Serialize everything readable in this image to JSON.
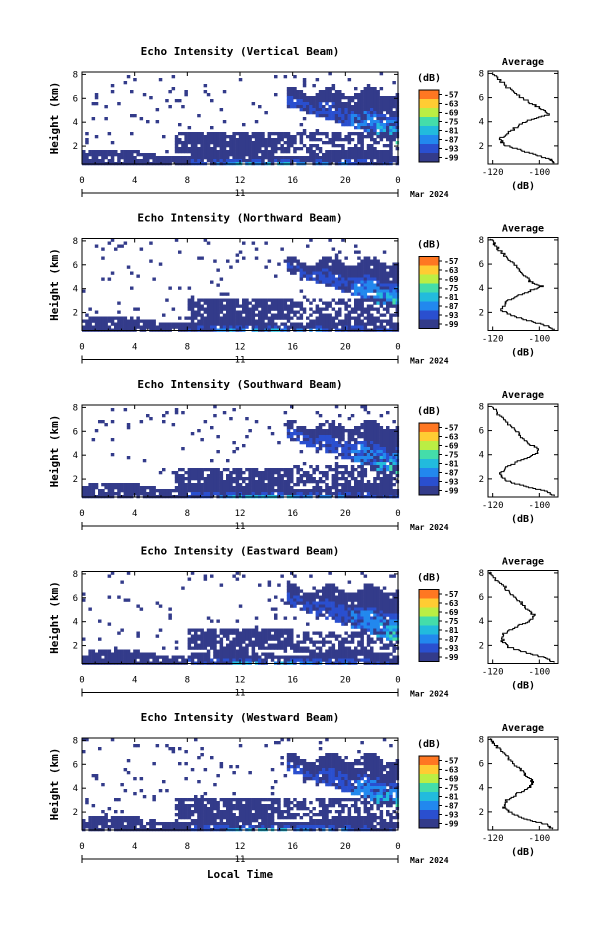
{
  "figure": {
    "xlabel_bottom": "Local Time",
    "date_label": "Mar 2024",
    "day_label": "11"
  },
  "colorbar": {
    "unit_label": "(dB)",
    "levels": [
      "-57",
      "-63",
      "-69",
      "-75",
      "-81",
      "-87",
      "-93",
      "-99"
    ],
    "colors": [
      "#ff7722",
      "#ffcc33",
      "#bbee44",
      "#44ddaa",
      "#22bbdd",
      "#2288ee",
      "#2a4fcf",
      "#333b8a"
    ]
  },
  "chart_data": [
    {
      "type": "heatmap",
      "title": "Echo Intensity (Vertical Beam)",
      "ylabel": "Height (km)",
      "x_ticks": [
        "0",
        "4",
        "8",
        "12",
        "16",
        "20",
        "0"
      ],
      "y_ticks": [
        "2",
        "4",
        "6",
        "8"
      ],
      "xlim": [
        0,
        24
      ],
      "ylim": [
        0.5,
        8.2
      ],
      "features": {
        "upper_layer_start_hour": 15.5,
        "upper_layer_top_km": 7.0,
        "mid_layer_km": 2.5,
        "surface_layer_km": 1.0
      },
      "profile": {
        "title": "Average",
        "xlabel": "(dB)",
        "x_ticks": [
          "-120",
          "-100"
        ],
        "xlim": [
          -122,
          -92
        ],
        "y_ticks": [
          "2",
          "4",
          "6",
          "8"
        ],
        "points": [
          [
            -93,
            0.6
          ],
          [
            -95,
            0.9
          ],
          [
            -102,
            1.3
          ],
          [
            -110,
            1.8
          ],
          [
            -115,
            2.1
          ],
          [
            -117,
            2.6
          ],
          [
            -113,
            3.2
          ],
          [
            -108,
            3.8
          ],
          [
            -104,
            4.2
          ],
          [
            -96,
            4.6
          ],
          [
            -98,
            5.0
          ],
          [
            -103,
            5.5
          ],
          [
            -108,
            6.1
          ],
          [
            -113,
            6.8
          ],
          [
            -117,
            7.5
          ],
          [
            -120,
            8.1
          ]
        ]
      }
    },
    {
      "type": "heatmap",
      "title": "Echo Intensity (Northward Beam)",
      "ylabel": "Height (km)",
      "x_ticks": [
        "0",
        "4",
        "8",
        "12",
        "16",
        "20",
        "0"
      ],
      "y_ticks": [
        "2",
        "4",
        "6",
        "8"
      ],
      "xlim": [
        0,
        24
      ],
      "ylim": [
        0.5,
        8.2
      ],
      "features": {
        "upper_layer_start_hour": 15.5,
        "upper_layer_top_km": 6.8,
        "mid_layer_km": 2.5,
        "surface_layer_km": 1.0
      },
      "profile": {
        "title": "Average",
        "xlabel": "(dB)",
        "x_ticks": [
          "-120",
          "-100"
        ],
        "xlim": [
          -122,
          -92
        ],
        "y_ticks": [
          "2",
          "4",
          "6",
          "8"
        ],
        "points": [
          [
            -94,
            0.6
          ],
          [
            -96,
            0.9
          ],
          [
            -104,
            1.3
          ],
          [
            -112,
            1.8
          ],
          [
            -116,
            2.2
          ],
          [
            -115,
            2.8
          ],
          [
            -111,
            3.3
          ],
          [
            -104,
            3.8
          ],
          [
            -99,
            4.2
          ],
          [
            -104,
            4.6
          ],
          [
            -106,
            5.1
          ],
          [
            -109,
            5.7
          ],
          [
            -112,
            6.3
          ],
          [
            -116,
            7.0
          ],
          [
            -119,
            7.6
          ],
          [
            -121,
            8.1
          ]
        ]
      }
    },
    {
      "type": "heatmap",
      "title": "Echo Intensity (Southward Beam)",
      "ylabel": "Height (km)",
      "x_ticks": [
        "0",
        "4",
        "8",
        "12",
        "16",
        "20",
        "0"
      ],
      "y_ticks": [
        "2",
        "4",
        "6",
        "8"
      ],
      "xlim": [
        0,
        24
      ],
      "ylim": [
        0.5,
        8.2
      ],
      "features": {
        "upper_layer_start_hour": 15.5,
        "upper_layer_top_km": 7.0,
        "mid_layer_km": 2.2,
        "surface_layer_km": 1.0
      },
      "profile": {
        "title": "Average",
        "xlabel": "(dB)",
        "x_ticks": [
          "-120",
          "-100"
        ],
        "xlim": [
          -122,
          -92
        ],
        "y_ticks": [
          "2",
          "4",
          "6",
          "8"
        ],
        "points": [
          [
            -94,
            0.6
          ],
          [
            -96,
            1.0
          ],
          [
            -106,
            1.4
          ],
          [
            -114,
            1.9
          ],
          [
            -117,
            2.4
          ],
          [
            -114,
            3.0
          ],
          [
            -108,
            3.6
          ],
          [
            -101,
            4.1
          ],
          [
            -100,
            4.5
          ],
          [
            -104,
            4.9
          ],
          [
            -107,
            5.4
          ],
          [
            -110,
            6.0
          ],
          [
            -114,
            6.7
          ],
          [
            -117,
            7.3
          ],
          [
            -120,
            8.0
          ]
        ]
      }
    },
    {
      "type": "heatmap",
      "title": "Echo Intensity (Eastward Beam)",
      "ylabel": "Height (km)",
      "x_ticks": [
        "0",
        "4",
        "8",
        "12",
        "16",
        "20",
        "0"
      ],
      "y_ticks": [
        "2",
        "4",
        "6",
        "8"
      ],
      "xlim": [
        0,
        24
      ],
      "ylim": [
        0.5,
        8.2
      ],
      "features": {
        "upper_layer_start_hour": 15.5,
        "upper_layer_top_km": 7.2,
        "mid_layer_km": 2.6,
        "surface_layer_km": 1.0
      },
      "profile": {
        "title": "Average",
        "xlabel": "(dB)",
        "x_ticks": [
          "-120",
          "-100"
        ],
        "xlim": [
          -122,
          -92
        ],
        "y_ticks": [
          "2",
          "4",
          "6",
          "8"
        ],
        "points": [
          [
            -94,
            0.6
          ],
          [
            -97,
            1.0
          ],
          [
            -105,
            1.4
          ],
          [
            -113,
            1.9
          ],
          [
            -116,
            2.4
          ],
          [
            -115,
            3.0
          ],
          [
            -110,
            3.6
          ],
          [
            -104,
            4.0
          ],
          [
            -102,
            4.5
          ],
          [
            -105,
            5.0
          ],
          [
            -108,
            5.6
          ],
          [
            -112,
            6.2
          ],
          [
            -115,
            6.9
          ],
          [
            -119,
            7.6
          ],
          [
            -121,
            8.1
          ]
        ]
      }
    },
    {
      "type": "heatmap",
      "title": "Echo Intensity (Westward Beam)",
      "ylabel": "Height (km)",
      "x_ticks": [
        "0",
        "4",
        "8",
        "12",
        "16",
        "20",
        "0"
      ],
      "y_ticks": [
        "2",
        "4",
        "6",
        "8"
      ],
      "xlim": [
        0,
        24
      ],
      "ylim": [
        0.5,
        8.2
      ],
      "features": {
        "upper_layer_start_hour": 15.5,
        "upper_layer_top_km": 7.0,
        "mid_layer_km": 2.5,
        "surface_layer_km": 1.0
      },
      "profile": {
        "title": "Average",
        "xlabel": "(dB)",
        "x_ticks": [
          "-120",
          "-100"
        ],
        "xlim": [
          -122,
          -92
        ],
        "y_ticks": [
          "2",
          "4",
          "6",
          "8"
        ],
        "points": [
          [
            -94,
            0.6
          ],
          [
            -97,
            1.0
          ],
          [
            -105,
            1.4
          ],
          [
            -112,
            1.9
          ],
          [
            -115,
            2.4
          ],
          [
            -114,
            3.0
          ],
          [
            -109,
            3.6
          ],
          [
            -104,
            4.1
          ],
          [
            -103,
            4.6
          ],
          [
            -106,
            5.1
          ],
          [
            -109,
            5.7
          ],
          [
            -112,
            6.3
          ],
          [
            -116,
            7.0
          ],
          [
            -119,
            7.6
          ],
          [
            -121,
            8.1
          ]
        ]
      }
    }
  ]
}
